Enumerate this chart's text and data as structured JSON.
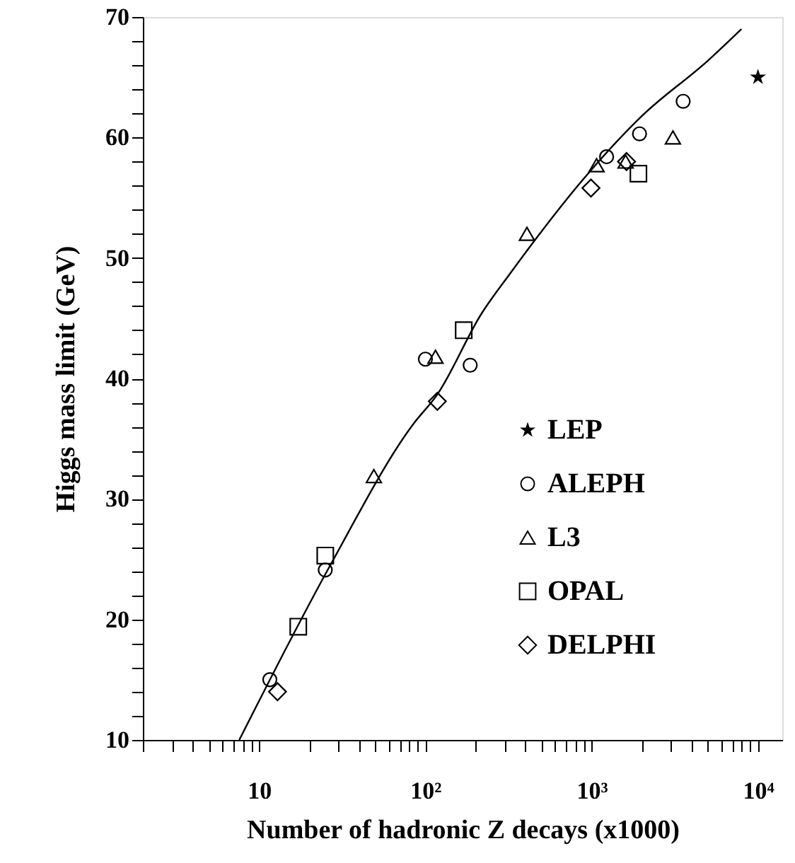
{
  "chart_data": {
    "type": "scatter",
    "xlabel": "Number of hadronic Z decays (x1000)",
    "ylabel": "Higgs mass limit (GeV)",
    "log": "x",
    "grid": false,
    "legend": "bottom right",
    "xlim": [
      2,
      14000
    ],
    "ylim": [
      10,
      70
    ],
    "xticks": [
      {
        "value": 2,
        "label": null
      },
      {
        "value": 3,
        "label": null
      },
      {
        "value": 4,
        "label": null
      },
      {
        "value": 5,
        "label": null
      },
      {
        "value": 6,
        "label": null
      },
      {
        "value": 7,
        "label": null
      },
      {
        "value": 8,
        "label": null
      },
      {
        "value": 9,
        "label": null
      },
      10,
      {
        "value": 20,
        "label": null
      },
      {
        "value": 30,
        "label": null
      },
      {
        "value": 40,
        "label": null
      },
      {
        "value": 50,
        "label": null
      },
      {
        "value": 60,
        "label": null
      },
      {
        "value": 70,
        "label": null
      },
      {
        "value": 80,
        "label": null
      },
      {
        "value": 90,
        "label": null
      },
      {
        "value": 100,
        "label": "10²"
      },
      {
        "value": 200,
        "label": null
      },
      {
        "value": 300,
        "label": null
      },
      {
        "value": 400,
        "label": null
      },
      {
        "value": 500,
        "label": null
      },
      {
        "value": 600,
        "label": null
      },
      {
        "value": 700,
        "label": null
      },
      {
        "value": 800,
        "label": null
      },
      {
        "value": 900,
        "label": null
      },
      {
        "value": 1000,
        "label": "10³"
      },
      {
        "value": 2000,
        "label": null
      },
      {
        "value": 3000,
        "label": null
      },
      {
        "value": 4000,
        "label": null
      },
      {
        "value": 5000,
        "label": null
      },
      {
        "value": 6000,
        "label": null
      },
      {
        "value": 7000,
        "label": null
      },
      {
        "value": 8000,
        "label": null
      },
      {
        "value": 9000,
        "label": null
      },
      {
        "value": 10000,
        "label": "10⁴"
      }
    ],
    "yticks": [
      10,
      {
        "value": 12,
        "label": null
      },
      {
        "value": 14,
        "label": null
      },
      {
        "value": 16,
        "label": null
      },
      {
        "value": 18,
        "label": null
      },
      20,
      {
        "value": 22,
        "label": null
      },
      {
        "value": 24,
        "label": null
      },
      {
        "value": 26,
        "label": null
      },
      {
        "value": 28,
        "label": null
      },
      30,
      {
        "value": 32,
        "label": null
      },
      {
        "value": 34,
        "label": null
      },
      {
        "value": 36,
        "label": null
      },
      {
        "value": 38,
        "label": null
      },
      40,
      {
        "value": 42,
        "label": null
      },
      {
        "value": 44,
        "label": null
      },
      {
        "value": 46,
        "label": null
      },
      {
        "value": 48,
        "label": null
      },
      50,
      {
        "value": 52,
        "label": null
      },
      {
        "value": 54,
        "label": null
      },
      {
        "value": 56,
        "label": null
      },
      {
        "value": 58,
        "label": null
      },
      60,
      {
        "value": 62,
        "label": null
      },
      {
        "value": 64,
        "label": null
      },
      {
        "value": 66,
        "label": null
      },
      {
        "value": 68,
        "label": null
      },
      70
    ],
    "series": [
      {
        "name": "LEP",
        "color": "#000000",
        "marker": "star",
        "x": [
          10000
        ],
        "values": [
          65
        ]
      },
      {
        "name": "ALEPH",
        "color": "#000000",
        "marker": "circle",
        "x": [
          11.6,
          25,
          100,
          186,
          1230,
          1940,
          3550
        ],
        "values": [
          15,
          24.1,
          41.6,
          41.1,
          58.4,
          60.3,
          63
        ]
      },
      {
        "name": "L3",
        "color": "#000000",
        "marker": "triangle",
        "x": [
          49,
          115,
          408,
          1070,
          1600,
          3080
        ],
        "values": [
          31.9,
          41.8,
          52,
          57.7,
          58,
          60
        ]
      },
      {
        "name": "OPAL",
        "color": "#000000",
        "marker": "square",
        "x": [
          17.2,
          25,
          170,
          1910
        ],
        "values": [
          19.4,
          25.3,
          44,
          57
        ]
      },
      {
        "name": "DELPHI",
        "color": "#000000",
        "marker": "diamond",
        "x": [
          12.9,
          118,
          990,
          1620
        ],
        "values": [
          14,
          38.1,
          55.8,
          58
        ]
      },
      {
        "type": "line",
        "color": "#000000",
        "line_style": "solid",
        "marker": "none",
        "x": [
          7.6,
          26.8,
          85.5,
          117,
          218,
          323,
          951,
          2010,
          5020,
          7950
        ],
        "values": [
          10,
          24.5,
          36.3,
          38.6,
          45.4,
          48.7,
          57,
          61.8,
          66.4,
          69
        ]
      }
    ]
  }
}
